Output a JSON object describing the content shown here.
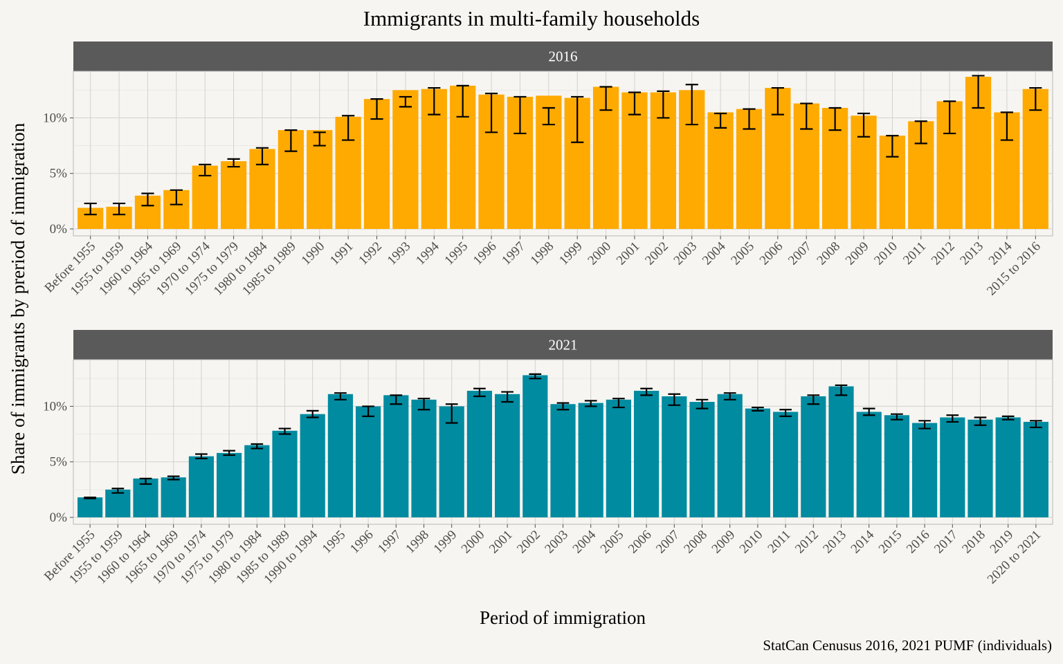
{
  "chart_data": {
    "type": "bar",
    "title": "Immigrants in multi-family households",
    "xlabel": "Period of immigration",
    "ylabel": "Share of immigrants by preriod of immigration",
    "caption": "StatCan Cenusus 2016, 2021 PUMF (individuals)",
    "y_ticks": [
      "0%",
      "5%",
      "10%"
    ],
    "y_tick_values": [
      0,
      5,
      10
    ],
    "ylim": [
      0,
      14.2
    ],
    "grid": true,
    "error_bars": true,
    "panels": [
      {
        "strip": "2016",
        "color": "#ffaa00",
        "categories": [
          "Before 1955",
          "1955 to 1959",
          "1960 to 1964",
          "1965 to 1969",
          "1970 to 1974",
          "1975 to 1979",
          "1980 to 1984",
          "1985 to 1989",
          "1990",
          "1991",
          "1992",
          "1993",
          "1994",
          "1995",
          "1996",
          "1997",
          "1998",
          "1999",
          "2000",
          "2001",
          "2002",
          "2003",
          "2004",
          "2005",
          "2006",
          "2007",
          "2008",
          "2009",
          "2010",
          "2011",
          "2012",
          "2013",
          "2014",
          "2015 to 2016"
        ],
        "values": [
          1.9,
          2.0,
          3.0,
          3.5,
          5.7,
          6.1,
          7.2,
          8.9,
          8.9,
          10.1,
          11.7,
          12.5,
          12.6,
          12.9,
          12.1,
          11.9,
          12.0,
          11.8,
          12.8,
          12.3,
          12.3,
          12.5,
          10.5,
          10.8,
          12.7,
          11.3,
          10.9,
          10.2,
          8.4,
          9.7,
          11.5,
          13.7,
          10.5,
          12.6
        ],
        "error_low": [
          1.3,
          1.3,
          2.1,
          2.2,
          4.8,
          5.6,
          5.8,
          7.0,
          7.5,
          8.0,
          9.9,
          11.0,
          10.3,
          10.1,
          8.7,
          8.6,
          9.4,
          7.8,
          10.7,
          10.3,
          10.0,
          9.4,
          9.1,
          9.0,
          10.3,
          9.0,
          8.9,
          8.3,
          6.5,
          7.7,
          8.6,
          10.9,
          8.0,
          10.7
        ],
        "error_high": [
          2.3,
          2.3,
          3.2,
          3.5,
          5.8,
          6.3,
          7.3,
          8.9,
          8.7,
          10.2,
          11.7,
          11.9,
          12.7,
          12.9,
          12.2,
          11.9,
          10.9,
          11.9,
          12.8,
          12.3,
          12.4,
          13.0,
          10.4,
          10.8,
          12.7,
          11.3,
          10.9,
          10.4,
          8.4,
          9.7,
          11.5,
          13.8,
          10.5,
          12.7
        ]
      },
      {
        "strip": "2021",
        "color": "#008ba0",
        "categories": [
          "Before 1955",
          "1955 to 1959",
          "1960 to 1964",
          "1965 to 1969",
          "1970 to 1974",
          "1975 to 1979",
          "1980 to 1984",
          "1985 to 1989",
          "1990 to 1994",
          "1995",
          "1996",
          "1997",
          "1998",
          "1999",
          "2000",
          "2001",
          "2002",
          "2003",
          "2004",
          "2005",
          "2006",
          "2007",
          "2008",
          "2009",
          "2010",
          "2011",
          "2012",
          "2013",
          "2014",
          "2015",
          "2016",
          "2017",
          "2018",
          "2019",
          "2020 to 2021"
        ],
        "values": [
          1.8,
          2.5,
          3.5,
          3.6,
          5.5,
          5.8,
          6.5,
          7.8,
          9.3,
          11.1,
          10.0,
          11.0,
          10.6,
          10.0,
          11.4,
          11.1,
          12.8,
          10.2,
          10.3,
          10.6,
          11.4,
          10.9,
          10.4,
          11.1,
          9.8,
          9.5,
          10.9,
          11.8,
          9.5,
          9.2,
          8.5,
          9.0,
          8.8,
          9.0,
          8.6
        ],
        "error_low": [
          1.7,
          2.2,
          3.0,
          3.4,
          5.3,
          5.6,
          6.2,
          7.5,
          9.0,
          10.6,
          9.1,
          10.2,
          9.7,
          8.5,
          10.9,
          10.4,
          12.5,
          9.7,
          10.0,
          9.9,
          11.0,
          10.1,
          9.8,
          10.6,
          9.6,
          9.1,
          10.2,
          11.0,
          9.2,
          8.8,
          8.0,
          8.6,
          8.3,
          8.8,
          8.1
        ],
        "error_high": [
          1.8,
          2.6,
          3.5,
          3.7,
          5.7,
          6.0,
          6.6,
          8.0,
          9.6,
          11.2,
          10.0,
          11.0,
          10.7,
          10.2,
          11.6,
          11.3,
          12.9,
          10.3,
          10.5,
          10.7,
          11.6,
          11.1,
          10.6,
          11.2,
          9.9,
          9.7,
          11.0,
          11.9,
          9.8,
          9.3,
          8.7,
          9.2,
          9.0,
          9.1,
          8.7
        ]
      }
    ]
  }
}
